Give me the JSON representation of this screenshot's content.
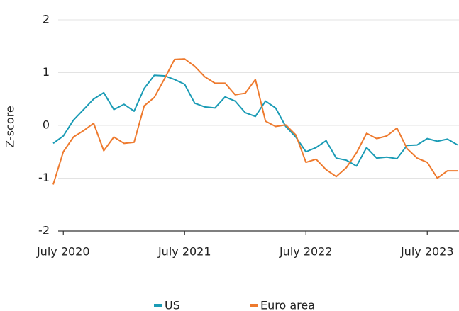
{
  "chart_data": {
    "type": "line",
    "y_label": "Z-score",
    "x": [
      "2020-06",
      "2020-07",
      "2020-08",
      "2020-09",
      "2020-10",
      "2020-11",
      "2020-12",
      "2021-01",
      "2021-02",
      "2021-03",
      "2021-04",
      "2021-05",
      "2021-06",
      "2021-07",
      "2021-08",
      "2021-09",
      "2021-10",
      "2021-11",
      "2021-12",
      "2022-01",
      "2022-02",
      "2022-03",
      "2022-04",
      "2022-05",
      "2022-06",
      "2022-07",
      "2022-08",
      "2022-09",
      "2022-10",
      "2022-11",
      "2022-12",
      "2023-01",
      "2023-02",
      "2023-03",
      "2023-04",
      "2023-05",
      "2023-06",
      "2023-07",
      "2023-08",
      "2023-09",
      "2023-10"
    ],
    "series": [
      {
        "name": "US",
        "color": "#1a9bb5",
        "values": [
          -0.34,
          -0.2,
          0.1,
          0.3,
          0.5,
          0.62,
          0.3,
          0.4,
          0.27,
          0.7,
          0.95,
          0.94,
          0.87,
          0.78,
          0.42,
          0.35,
          0.33,
          0.54,
          0.46,
          0.24,
          0.17,
          0.46,
          0.33,
          -0.02,
          -0.22,
          -0.5,
          -0.42,
          -0.29,
          -0.62,
          -0.66,
          -0.77,
          -0.42,
          -0.62,
          -0.6,
          -0.63,
          -0.38,
          -0.37,
          -0.25,
          -0.3,
          -0.26,
          -0.37
        ]
      },
      {
        "name": "Euro area",
        "color": "#ee7a2e",
        "values": [
          -1.12,
          -0.5,
          -0.22,
          -0.1,
          0.04,
          -0.48,
          -0.22,
          -0.34,
          -0.32,
          0.37,
          0.53,
          0.88,
          1.25,
          1.26,
          1.12,
          0.92,
          0.8,
          0.8,
          0.58,
          0.61,
          0.87,
          0.08,
          -0.02,
          0.01,
          -0.18,
          -0.7,
          -0.64,
          -0.84,
          -0.97,
          -0.8,
          -0.52,
          -0.15,
          -0.25,
          -0.2,
          -0.05,
          -0.44,
          -0.62,
          -0.7,
          -1.0,
          -0.86,
          -0.86
        ]
      }
    ],
    "xlim": [
      "2020-06",
      "2023-10"
    ],
    "xticks": [
      {
        "value": "2020-07",
        "label": "July 2020"
      },
      {
        "value": "2021-07",
        "label": "July 2021"
      },
      {
        "value": "2022-07",
        "label": "July 2022"
      },
      {
        "value": "2023-07",
        "label": "July 2023"
      }
    ],
    "ylim": [
      -2,
      2
    ],
    "yticks": [
      -2,
      -1,
      0,
      1,
      2
    ],
    "grid": true,
    "legend": "bottom"
  }
}
